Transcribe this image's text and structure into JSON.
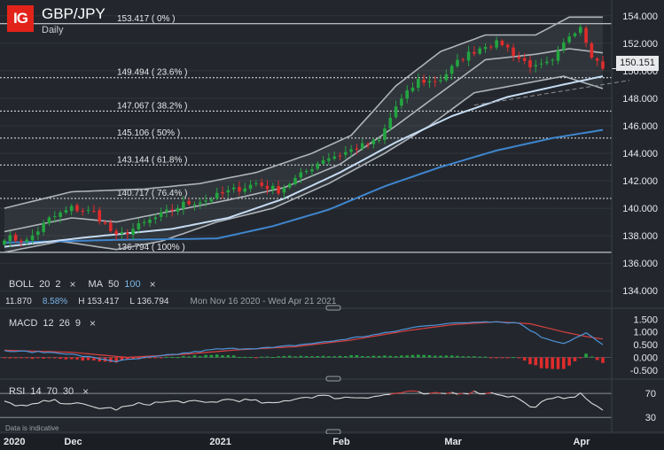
{
  "header": {
    "logo": "IG",
    "title": "GBP/JPY",
    "subtitle": "Daily"
  },
  "current_price": "150.151",
  "indicators": {
    "boll": {
      "label": "BOLL",
      "period": "20",
      "stddev": "2",
      "close": "×"
    },
    "ma": {
      "label": "MA",
      "fast": "50",
      "slow": "100",
      "close": "×"
    },
    "stats": {
      "a": "11.870",
      "b": "8.58%",
      "high": "H 153.417",
      "low": "L 136.794",
      "range": "Mon Nov 16 2020 - Wed Apr 21 2021"
    },
    "macd": {
      "label": "MACD",
      "fast": "12",
      "slow": "26",
      "signal": "9",
      "close": "×"
    },
    "rsi": {
      "label": "RSI",
      "period": "14",
      "upper": "70",
      "lower": "30",
      "close": "×"
    }
  },
  "disclaimer": "Data is indicative",
  "x_axis_labels": [
    {
      "text": "2020",
      "bar": 0
    },
    {
      "text": "Dec",
      "bar": 11
    },
    {
      "text": "2021",
      "bar": 37
    },
    {
      "text": "Feb",
      "bar": 59
    },
    {
      "text": "Mar",
      "bar": 79
    },
    {
      "text": "Apr",
      "bar": 102
    }
  ],
  "colors": {
    "up": "#23a540",
    "down": "#e02c2c",
    "boll": "#aeb3ba",
    "ma50": "#c6dcf3",
    "ma100": "#3f86cf",
    "macd_line": "#4d94d8",
    "signal_line": "#d94040",
    "rsi_line": "#dcdcdc",
    "rsi_overbought": "#d94040"
  },
  "chart_data": {
    "type": "candlestick",
    "ylim": [
      133.5,
      154.5
    ],
    "y_ticks": [
      "154.000",
      "152.000",
      "150.000",
      "148.000",
      "146.000",
      "144.000",
      "142.000",
      "140.000",
      "138.000",
      "136.000",
      "134.000"
    ],
    "fibonacci": [
      {
        "label": "153.417 ( 0% )",
        "value": 153.417
      },
      {
        "label": "149.494 ( 23.6% )",
        "value": 149.494
      },
      {
        "label": "147.067 ( 38.2% )",
        "value": 147.067
      },
      {
        "label": "145.106 ( 50% )",
        "value": 145.106
      },
      {
        "label": "143.144 ( 61.8% )",
        "value": 143.144
      },
      {
        "label": "140.717 ( 76.4% )",
        "value": 140.717
      },
      {
        "label": "136.794 ( 100% )",
        "value": 136.794
      }
    ],
    "close_anchors": [
      [
        0,
        137.9
      ],
      [
        4,
        137.6
      ],
      [
        8,
        139.2
      ],
      [
        12,
        140.0
      ],
      [
        16,
        139.7
      ],
      [
        20,
        137.9
      ],
      [
        24,
        138.7
      ],
      [
        28,
        139.5
      ],
      [
        32,
        140.3
      ],
      [
        36,
        140.6
      ],
      [
        40,
        141.2
      ],
      [
        45,
        141.8
      ],
      [
        49,
        141.3
      ],
      [
        53,
        142.4
      ],
      [
        57,
        143.6
      ],
      [
        60,
        143.9
      ],
      [
        63,
        144.4
      ],
      [
        67,
        144.9
      ],
      [
        70,
        147.4
      ],
      [
        74,
        149.3
      ],
      [
        76,
        149.2
      ],
      [
        78,
        149.4
      ],
      [
        82,
        151.0
      ],
      [
        86,
        151.9
      ],
      [
        89,
        152.0
      ],
      [
        92,
        150.9
      ],
      [
        95,
        150.2
      ],
      [
        98,
        150.6
      ],
      [
        101,
        152.6
      ],
      [
        103,
        153.3
      ],
      [
        105,
        151.2
      ],
      [
        107,
        150.15
      ]
    ],
    "boll_upper_anchors": [
      [
        0,
        140.0
      ],
      [
        12,
        141.2
      ],
      [
        25,
        141.4
      ],
      [
        35,
        141.8
      ],
      [
        45,
        142.6
      ],
      [
        55,
        144.0
      ],
      [
        62,
        145.3
      ],
      [
        70,
        148.9
      ],
      [
        78,
        151.4
      ],
      [
        86,
        152.6
      ],
      [
        95,
        152.6
      ],
      [
        101,
        153.9
      ],
      [
        107,
        153.9
      ]
    ],
    "boll_mid_anchors": [
      [
        0,
        138.3
      ],
      [
        12,
        139.3
      ],
      [
        20,
        139.0
      ],
      [
        30,
        139.8
      ],
      [
        40,
        140.6
      ],
      [
        50,
        141.5
      ],
      [
        60,
        143.2
      ],
      [
        70,
        146.0
      ],
      [
        78,
        148.4
      ],
      [
        86,
        150.8
      ],
      [
        95,
        151.2
      ],
      [
        101,
        151.6
      ],
      [
        107,
        151.3
      ]
    ],
    "boll_lower_anchors": [
      [
        0,
        136.8
      ],
      [
        10,
        137.6
      ],
      [
        20,
        137.0
      ],
      [
        28,
        137.6
      ],
      [
        38,
        139.0
      ],
      [
        48,
        140.0
      ],
      [
        58,
        141.8
      ],
      [
        68,
        144.0
      ],
      [
        76,
        146.0
      ],
      [
        84,
        148.4
      ],
      [
        92,
        149.0
      ],
      [
        100,
        149.6
      ],
      [
        107,
        148.7
      ]
    ],
    "ma50_anchors": [
      [
        0,
        137.2
      ],
      [
        15,
        137.9
      ],
      [
        30,
        138.5
      ],
      [
        40,
        139.3
      ],
      [
        50,
        140.7
      ],
      [
        60,
        142.6
      ],
      [
        70,
        144.8
      ],
      [
        80,
        146.7
      ],
      [
        90,
        148.1
      ],
      [
        100,
        149.0
      ],
      [
        107,
        149.6
      ]
    ],
    "ma100_anchors": [
      [
        0,
        137.5
      ],
      [
        20,
        137.7
      ],
      [
        38,
        137.8
      ],
      [
        48,
        138.7
      ],
      [
        58,
        139.9
      ],
      [
        68,
        141.6
      ],
      [
        78,
        143.0
      ],
      [
        88,
        144.2
      ],
      [
        98,
        145.1
      ],
      [
        107,
        145.7
      ]
    ],
    "macd_axis": {
      "ylim": [
        -0.75,
        1.65
      ],
      "ticks": [
        "1.500",
        "1.000",
        "0.500",
        "0.000",
        "-0.500"
      ]
    },
    "macd_anchors": [
      [
        0,
        0.25
      ],
      [
        10,
        0.18
      ],
      [
        20,
        -0.15
      ],
      [
        28,
        0.05
      ],
      [
        38,
        0.32
      ],
      [
        48,
        0.38
      ],
      [
        58,
        0.62
      ],
      [
        68,
        0.95
      ],
      [
        75,
        1.25
      ],
      [
        80,
        1.33
      ],
      [
        86,
        1.42
      ],
      [
        92,
        1.35
      ],
      [
        96,
        0.8
      ],
      [
        100,
        0.55
      ],
      [
        104,
        0.95
      ],
      [
        107,
        0.5
      ]
    ],
    "signal_anchors": [
      [
        0,
        0.28
      ],
      [
        12,
        0.2
      ],
      [
        22,
        0.0
      ],
      [
        32,
        0.12
      ],
      [
        42,
        0.3
      ],
      [
        52,
        0.42
      ],
      [
        62,
        0.68
      ],
      [
        72,
        1.05
      ],
      [
        80,
        1.28
      ],
      [
        88,
        1.4
      ],
      [
        94,
        1.32
      ],
      [
        100,
        1.0
      ],
      [
        104,
        0.82
      ],
      [
        107,
        0.72
      ]
    ],
    "rsi_axis": {
      "ylim": [
        20,
        85
      ],
      "ticks": [
        "70",
        "30"
      ]
    },
    "rsi_anchors": [
      [
        0,
        55
      ],
      [
        4,
        48
      ],
      [
        8,
        58
      ],
      [
        12,
        54
      ],
      [
        16,
        47
      ],
      [
        20,
        44
      ],
      [
        24,
        52
      ],
      [
        28,
        55
      ],
      [
        32,
        57
      ],
      [
        36,
        54
      ],
      [
        40,
        60
      ],
      [
        44,
        58
      ],
      [
        48,
        52
      ],
      [
        52,
        62
      ],
      [
        56,
        66
      ],
      [
        60,
        63
      ],
      [
        64,
        64
      ],
      [
        68,
        67
      ],
      [
        72,
        73
      ],
      [
        76,
        68
      ],
      [
        80,
        71
      ],
      [
        84,
        72
      ],
      [
        88,
        70
      ],
      [
        92,
        62
      ],
      [
        94,
        46
      ],
      [
        97,
        58
      ],
      [
        100,
        64
      ],
      [
        103,
        68
      ],
      [
        105,
        55
      ],
      [
        107,
        42
      ]
    ]
  }
}
